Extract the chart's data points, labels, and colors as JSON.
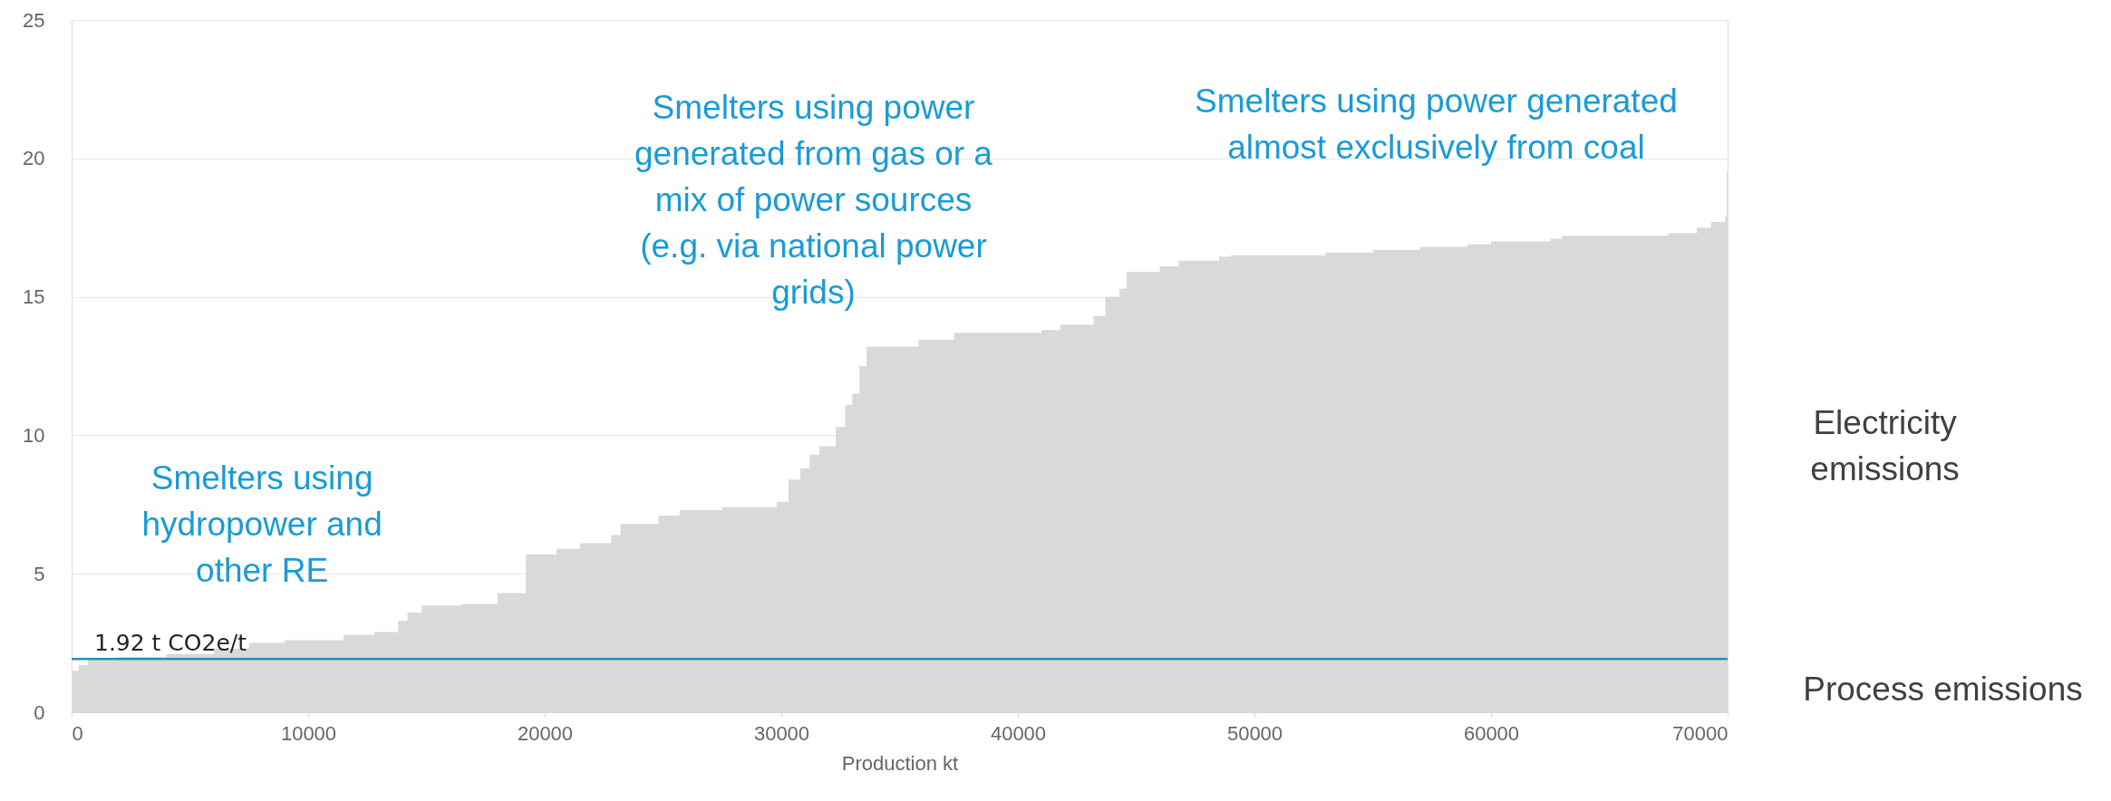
{
  "chart_data": {
    "type": "area",
    "xlabel": "Production kt",
    "x": [
      0,
      300,
      700,
      2000,
      4000,
      6000,
      7500,
      9000,
      11500,
      12800,
      13800,
      14200,
      14800,
      16500,
      18000,
      19200,
      20500,
      21500,
      22800,
      23200,
      24800,
      25700,
      27500,
      29800,
      30300,
      30800,
      31200,
      31600,
      32300,
      32700,
      33000,
      33300,
      33600,
      35800,
      37300,
      41000,
      41800,
      43200,
      43700,
      44300,
      44600,
      46000,
      46800,
      48500,
      49000,
      53000,
      55000,
      57000,
      59000,
      60000,
      62500,
      63000,
      67500,
      68700,
      69300,
      69900,
      69970,
      70000
    ],
    "series": [
      {
        "color": "#d9d9d9",
        "values": [
          1.5,
          1.7,
          1.9,
          2.0,
          2.1,
          2.3,
          2.5,
          2.6,
          2.8,
          2.9,
          3.3,
          3.6,
          3.85,
          3.9,
          4.3,
          5.7,
          5.9,
          6.1,
          6.4,
          6.8,
          7.1,
          7.3,
          7.4,
          7.6,
          8.4,
          8.8,
          9.3,
          9.6,
          10.3,
          11.1,
          11.5,
          12.5,
          13.2,
          13.45,
          13.7,
          13.8,
          14.0,
          14.3,
          15.0,
          15.3,
          15.9,
          16.1,
          16.3,
          16.45,
          16.5,
          16.6,
          16.7,
          16.8,
          16.9,
          17.0,
          17.1,
          17.2,
          17.3,
          17.5,
          17.7,
          17.9,
          19.5,
          19.5
        ]
      }
    ],
    "xlim": [
      0,
      70000
    ],
    "xticks": [
      0,
      10000,
      20000,
      30000,
      40000,
      50000,
      60000,
      70000
    ],
    "ylim": [
      0,
      25
    ],
    "yticks": [
      0,
      5,
      10,
      15,
      20,
      25
    ],
    "grid": "y",
    "ref_lines": [
      {
        "axis": "y",
        "value": 1.92,
        "label": "1.92 t CO2e/t",
        "color": "#2b8cbe"
      }
    ],
    "annotations": [
      "Smelters using\nhydropower and\nother RE",
      "Smelters using power\ngenerated from gas or a\nmix of power sources\n(e.g. via national power\ngrids)",
      "Smelters using power generated\nalmost exclusively from coal",
      "Electricity\nemissions",
      "Process emissions"
    ]
  }
}
